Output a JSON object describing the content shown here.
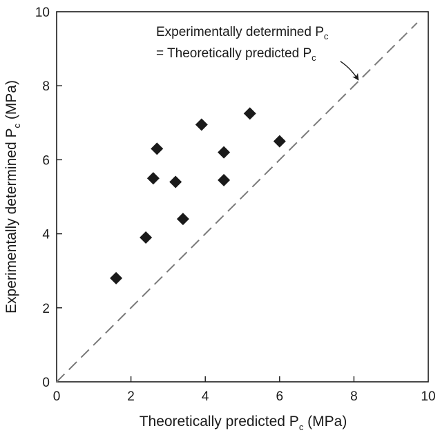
{
  "chart_data": {
    "type": "scatter",
    "xlabel": "Theoretically predicted P",
    "xlabel_sub": "c",
    "xlabel_unit": " (MPa)",
    "ylabel": "Experimentally determined P",
    "ylabel_sub": "c",
    "ylabel_unit": " (MPa)",
    "xlim": [
      0,
      10
    ],
    "ylim": [
      0,
      10
    ],
    "x_ticks": [
      "0",
      "2",
      "4",
      "6",
      "8",
      "10"
    ],
    "y_ticks": [
      "0",
      "2",
      "4",
      "6",
      "8",
      "10"
    ],
    "grid": false,
    "legend": "none",
    "series": [
      {
        "marker": "diamond",
        "color": "#1a1a1a",
        "points": [
          {
            "x": 1.6,
            "y": 2.8
          },
          {
            "x": 2.4,
            "y": 3.9
          },
          {
            "x": 2.6,
            "y": 5.5
          },
          {
            "x": 2.7,
            "y": 6.3
          },
          {
            "x": 3.2,
            "y": 5.4
          },
          {
            "x": 3.4,
            "y": 4.4
          },
          {
            "x": 3.9,
            "y": 6.95
          },
          {
            "x": 4.5,
            "y": 6.2
          },
          {
            "x": 4.5,
            "y": 5.45
          },
          {
            "x": 5.2,
            "y": 7.25
          },
          {
            "x": 6.0,
            "y": 6.5
          }
        ]
      }
    ],
    "reference_line": {
      "from": [
        0,
        0
      ],
      "to": [
        9.7,
        9.7
      ],
      "style": "dashed",
      "color": "#7a7a7a"
    },
    "annotation": {
      "line1": "Experimentally determined P",
      "line1_sub": "c",
      "line2": "= Theoretically predicted P",
      "line2_sub": "c",
      "arrow_target": [
        8.1,
        8.1
      ]
    }
  }
}
